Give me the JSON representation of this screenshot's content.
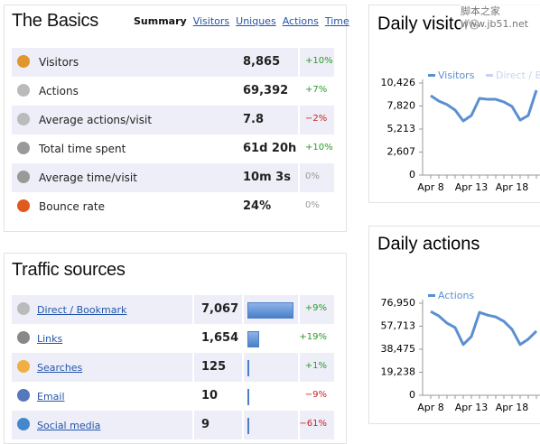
{
  "basics": {
    "title": "The Basics",
    "tabs": [
      "Summary",
      "Visitors",
      "Uniques",
      "Actions",
      "Time"
    ],
    "rows": [
      {
        "label": "Visitors",
        "value": "8,865",
        "change": "+10%"
      },
      {
        "label": "Actions",
        "value": "69,392",
        "change": "+7%"
      },
      {
        "label": "Average actions/visit",
        "value": "7.8",
        "change": "−2%"
      },
      {
        "label": "Total time spent",
        "value": "61d 20h",
        "change": "+10%"
      },
      {
        "label": "Average time/visit",
        "value": "10m 3s",
        "change": "0%"
      },
      {
        "label": "Bounce rate",
        "value": "24%",
        "change": "0%"
      }
    ]
  },
  "traffic": {
    "title": "Traffic sources",
    "rows": [
      {
        "label": "Direct / Bookmark",
        "value": 7067,
        "value_label": "7,067",
        "change": "+9%"
      },
      {
        "label": "Links",
        "value": 1654,
        "value_label": "1,654",
        "change": "+19%"
      },
      {
        "label": "Searches",
        "value": 125,
        "change": "+1%"
      },
      {
        "label": "Email",
        "value": 10,
        "change": "−9%"
      },
      {
        "label": "Social media",
        "value": 9,
        "change": "−61%"
      }
    ]
  },
  "watermark": "脚本之家 www.jb51.net",
  "chart_data": [
    {
      "type": "line",
      "title": "Daily visitors",
      "categories": [
        "Apr 8",
        null,
        null,
        null,
        null,
        "Apr 13",
        null,
        null,
        null,
        null,
        "Apr 18",
        null,
        null,
        null
      ],
      "series": [
        {
          "name": "Visitors",
          "color": "#5b8fd0",
          "values": [
            8990,
            8380,
            7980,
            7360,
            6130,
            6750,
            8690,
            8580,
            8580,
            8280,
            7770,
            6230,
            6750,
            9610
          ]
        },
        {
          "name": "Direct / Bookmark",
          "color": "#c8d4ee",
          "values": [
            null,
            null,
            null,
            null,
            null,
            null,
            null,
            null,
            null,
            null,
            null,
            null,
            null,
            null
          ]
        }
      ],
      "ylim": [
        0,
        10426
      ],
      "yticks": [
        0,
        {
          "value": 2607,
          "label": "2,607"
        },
        {
          "value": 5213,
          "label": "5,213"
        },
        {
          "value": 7820,
          "label": "7,820"
        },
        {
          "value": 10426,
          "label": "10,426"
        }
      ]
    },
    {
      "type": "line",
      "title": "Daily actions",
      "categories": [
        "Apr 8",
        null,
        null,
        null,
        null,
        "Apr 13",
        null,
        null,
        null,
        null,
        "Apr 18",
        null,
        null,
        null
      ],
      "series": [
        {
          "name": "Actions",
          "color": "#5b8fd0",
          "values": [
            70000,
            66300,
            60300,
            56600,
            42400,
            49100,
            69300,
            67000,
            65500,
            61800,
            55100,
            42400,
            46900,
            53600
          ]
        }
      ],
      "ylim": [
        0,
        76950
      ],
      "yticks": [
        0,
        {
          "value": 19238,
          "label": "19,238"
        },
        {
          "value": 38475,
          "label": "38,475"
        },
        {
          "value": 57713,
          "label": "57,713"
        },
        {
          "value": 76950,
          "label": "76,950"
        }
      ]
    }
  ]
}
